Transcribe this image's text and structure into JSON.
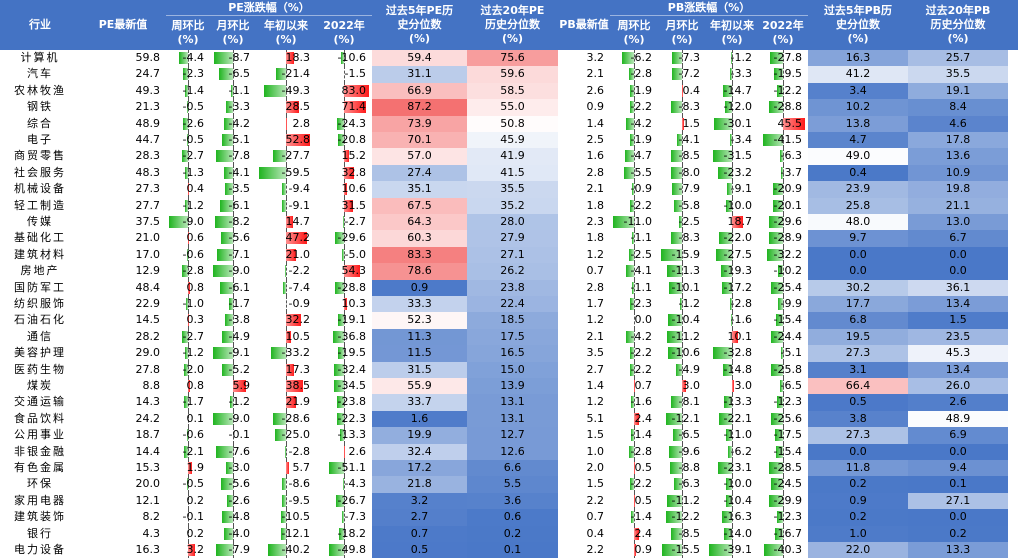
{
  "headers": {
    "industry": "行业",
    "pe_latest": "PE最新值",
    "pe_group": "PE涨跌幅（%）",
    "wow": [
      "周环比",
      "(%)"
    ],
    "mom": [
      "月环比",
      "(%)"
    ],
    "ytd": [
      "年初以来",
      "(%)"
    ],
    "y2022": [
      "2022年",
      "(%)"
    ],
    "pe_pct5": [
      "过去5年PE历",
      "史分位数",
      "(%)"
    ],
    "pe_pct20": [
      "过去20年PE",
      "历史分位数",
      "(%)"
    ],
    "pb_latest": "PB最新值",
    "pb_group": "PB涨跌幅（%）",
    "pb_pct5": [
      "过去5年PB历",
      "史分位数",
      "(%)"
    ],
    "pb_pct20": [
      "过去20年PB",
      "历史分位数",
      "(%)"
    ]
  },
  "columns": [
    "industry",
    "pe",
    "pe_wow",
    "pe_mom",
    "pe_ytd",
    "pe_2022",
    "pe_p5",
    "pe_p20",
    "pb",
    "pb_wow",
    "pb_mom",
    "pb_ytd",
    "pb_2022",
    "pb_p5",
    "pb_p20"
  ],
  "rows": [
    [
      "计算机",
      "59.8",
      "-4.4",
      "-8.7",
      "18.3",
      "-10.6",
      "59.4",
      "75.6",
      "3.2",
      "-6.2",
      "-7.3",
      "-1.2",
      "-27.8",
      "16.3",
      "25.7"
    ],
    [
      "汽车",
      "24.7",
      "-2.3",
      "-6.5",
      "-21.4",
      "-1.5",
      "31.1",
      "59.6",
      "2.1",
      "-2.8",
      "-7.2",
      "-3.3",
      "-19.5",
      "41.2",
      "35.5"
    ],
    [
      "农林牧渔",
      "49.3",
      "-1.4",
      "-1.1",
      "-49.3",
      "83.0",
      "66.9",
      "58.5",
      "2.6",
      "-1.9",
      "0.4",
      "-14.7",
      "-12.2",
      "3.4",
      "19.1"
    ],
    [
      "钢铁",
      "21.3",
      "-0.5",
      "-3.3",
      "28.5",
      "71.4",
      "87.2",
      "55.0",
      "0.9",
      "-2.2",
      "-8.3",
      "-12.0",
      "-28.8",
      "10.2",
      "8.4"
    ],
    [
      "综合",
      "48.9",
      "-2.6",
      "-4.2",
      "2.8",
      "-24.3",
      "73.9",
      "50.8",
      "1.4",
      "-4.2",
      "1.5",
      "-30.1",
      "45.5",
      "13.8",
      "4.6"
    ],
    [
      "电子",
      "44.7",
      "-0.5",
      "-5.1",
      "52.8",
      "-20.8",
      "70.1",
      "45.9",
      "2.5",
      "-1.9",
      "-4.1",
      "-3.4",
      "-41.5",
      "4.7",
      "17.8"
    ],
    [
      "商贸零售",
      "28.3",
      "-2.7",
      "-7.8",
      "-27.7",
      "15.2",
      "57.0",
      "41.9",
      "1.6",
      "-4.7",
      "-8.5",
      "-31.5",
      "-6.3",
      "49.0",
      "13.6"
    ],
    [
      "社会服务",
      "48.3",
      "-1.3",
      "-4.1",
      "-59.5",
      "32.8",
      "27.4",
      "41.5",
      "2.8",
      "-5.5",
      "-8.0",
      "-23.2",
      "-3.7",
      "0.4",
      "10.9"
    ],
    [
      "机械设备",
      "27.3",
      "0.4",
      "-3.5",
      "-9.4",
      "10.6",
      "35.1",
      "35.5",
      "2.1",
      "-0.9",
      "-7.9",
      "-9.1",
      "-20.9",
      "23.9",
      "19.8"
    ],
    [
      "轻工制造",
      "27.7",
      "-1.2",
      "-6.1",
      "-9.1",
      "31.5",
      "67.5",
      "35.2",
      "1.8",
      "-2.2",
      "-5.8",
      "-10.0",
      "-20.1",
      "25.8",
      "21.1"
    ],
    [
      "传媒",
      "37.5",
      "-9.0",
      "-8.2",
      "14.7",
      "-2.7",
      "64.3",
      "28.0",
      "2.3",
      "-11.0",
      "-2.5",
      "18.7",
      "-29.6",
      "48.0",
      "13.0"
    ],
    [
      "基础化工",
      "21.0",
      "0.6",
      "-5.6",
      "47.2",
      "-29.6",
      "60.3",
      "27.9",
      "1.8",
      "-1.1",
      "-8.3",
      "-22.0",
      "-28.9",
      "9.7",
      "6.7"
    ],
    [
      "建筑材料",
      "17.0",
      "-0.6",
      "-7.1",
      "21.0",
      "-5.0",
      "83.3",
      "27.1",
      "1.2",
      "-2.5",
      "-15.9",
      "-27.5",
      "-32.2",
      "0.0",
      "0.0"
    ],
    [
      "房地产",
      "12.9",
      "-2.8",
      "-9.0",
      "-2.2",
      "54.3",
      "78.6",
      "26.2",
      "0.7",
      "-4.1",
      "-11.3",
      "-19.3",
      "-10.2",
      "0.0",
      "0.0"
    ],
    [
      "国防军工",
      "48.4",
      "0.8",
      "-6.1",
      "-7.4",
      "-28.8",
      "0.9",
      "23.8",
      "2.8",
      "-1.1",
      "-10.1",
      "-17.2",
      "-25.4",
      "30.2",
      "36.1"
    ],
    [
      "纺织服饰",
      "22.9",
      "-1.0",
      "-1.7",
      "-0.9",
      "10.3",
      "33.3",
      "22.4",
      "1.7",
      "-2.3",
      "-1.2",
      "-2.8",
      "-9.9",
      "17.7",
      "13.4"
    ],
    [
      "石油石化",
      "14.5",
      "0.3",
      "-3.8",
      "32.2",
      "-19.1",
      "52.3",
      "18.5",
      "1.2",
      "0.0",
      "-10.4",
      "-1.6",
      "-15.4",
      "6.8",
      "1.5"
    ],
    [
      "通信",
      "28.2",
      "-2.7",
      "-4.9",
      "10.5",
      "-36.8",
      "11.3",
      "17.5",
      "2.1",
      "-4.2",
      "-11.2",
      "10.1",
      "-24.4",
      "19.5",
      "23.5"
    ],
    [
      "美容护理",
      "29.0",
      "-1.2",
      "-9.1",
      "-33.2",
      "-19.5",
      "11.5",
      "16.5",
      "3.5",
      "-2.2",
      "-10.6",
      "-32.8",
      "-5.1",
      "27.3",
      "45.3"
    ],
    [
      "医药生物",
      "27.8",
      "-2.0",
      "-5.2",
      "17.3",
      "-32.4",
      "31.5",
      "15.0",
      "2.7",
      "-2.2",
      "-4.9",
      "-14.8",
      "-25.8",
      "3.1",
      "13.4"
    ],
    [
      "煤炭",
      "8.8",
      "0.8",
      "5.9",
      "38.5",
      "-34.5",
      "55.9",
      "13.9",
      "1.4",
      "0.7",
      "3.0",
      "3.0",
      "-6.5",
      "66.4",
      "26.0"
    ],
    [
      "交通运输",
      "14.3",
      "-1.7",
      "-1.2",
      "21.9",
      "-23.8",
      "33.7",
      "13.1",
      "1.2",
      "-1.6",
      "-8.1",
      "-13.3",
      "-12.3",
      "0.5",
      "2.6"
    ],
    [
      "食品饮料",
      "24.2",
      "0.1",
      "-9.0",
      "-28.6",
      "-22.3",
      "1.6",
      "13.1",
      "5.1",
      "2.4",
      "-12.1",
      "-22.1",
      "-25.6",
      "3.8",
      "48.9"
    ],
    [
      "公用事业",
      "18.7",
      "-0.6",
      "-0.1",
      "-25.0",
      "-13.3",
      "19.9",
      "12.7",
      "1.5",
      "-1.4",
      "-6.5",
      "-11.0",
      "-17.5",
      "27.3",
      "6.9"
    ],
    [
      "非银金融",
      "14.4",
      "-2.1",
      "-7.6",
      "-2.8",
      "2.6",
      "32.4",
      "12.6",
      "1.0",
      "-2.8",
      "-9.6",
      "-6.2",
      "-15.4",
      "0.0",
      "0.0"
    ],
    [
      "有色金属",
      "15.3",
      "1.9",
      "-3.0",
      "5.7",
      "-51.1",
      "17.2",
      "6.6",
      "2.0",
      "0.5",
      "-8.8",
      "-23.1",
      "-28.5",
      "11.8",
      "9.4"
    ],
    [
      "环保",
      "20.0",
      "-0.5",
      "-5.6",
      "-8.6",
      "-4.3",
      "21.8",
      "5.5",
      "1.5",
      "-2.2",
      "-6.3",
      "-10.0",
      "-24.5",
      "0.2",
      "0.1"
    ],
    [
      "家用电器",
      "12.1",
      "0.2",
      "-2.6",
      "-9.5",
      "-26.7",
      "3.2",
      "3.6",
      "2.2",
      "0.5",
      "-11.2",
      "-10.4",
      "-29.9",
      "0.9",
      "27.1"
    ],
    [
      "建筑装饰",
      "8.2",
      "-0.1",
      "-4.8",
      "-10.5",
      "-7.3",
      "2.7",
      "0.6",
      "0.7",
      "-1.4",
      "-12.2",
      "-16.3",
      "-12.3",
      "0.2",
      "0.0"
    ],
    [
      "银行",
      "4.3",
      "0.2",
      "-4.0",
      "-12.1",
      "-18.2",
      "0.7",
      "0.2",
      "0.4",
      "2.4",
      "-8.5",
      "-14.0",
      "-16.7",
      "1.0",
      "0.2"
    ],
    [
      "电力设备",
      "16.3",
      "3.2",
      "-7.9",
      "-40.2",
      "-49.8",
      "0.5",
      "0.1",
      "2.2",
      "0.9",
      "-15.5",
      "-39.1",
      "-40.3",
      "22.0",
      "13.3"
    ]
  ],
  "colors": {
    "header_bg": "#4473c4",
    "bar_pos": "#ff1a1a",
    "bar_neg": "#1fb41f",
    "heat_low": "#4a78c8",
    "heat_mid": "#ffffff",
    "heat_high": "#f04040"
  }
}
